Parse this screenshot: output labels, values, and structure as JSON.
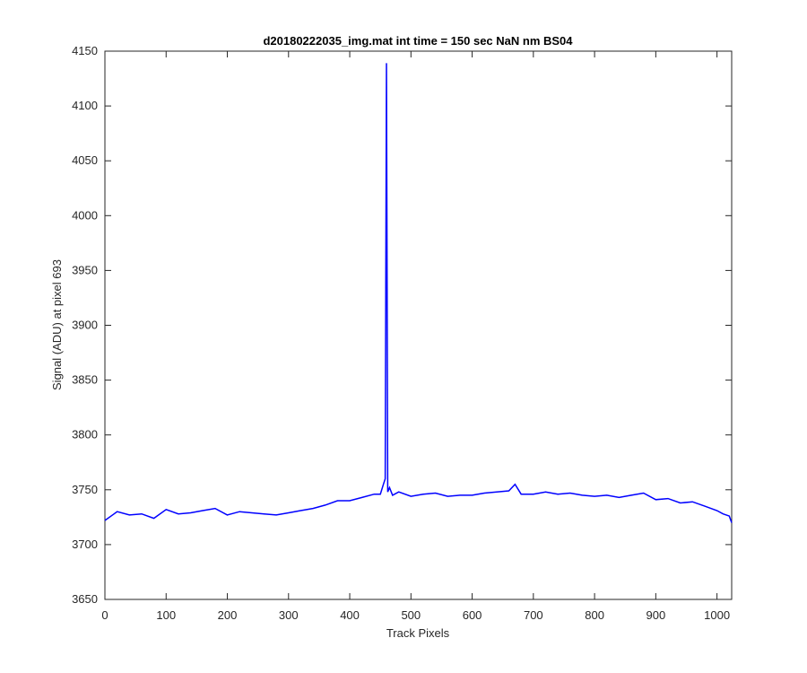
{
  "chart_data": {
    "type": "line",
    "title": "d20180222035_img.mat int time = 150 sec  NaN nm BS04",
    "xlabel": "Track Pixels",
    "ylabel": "Signal (ADU) at pixel 693",
    "xlim": [
      0,
      1024
    ],
    "ylim": [
      3650,
      4150
    ],
    "xticks": [
      0,
      100,
      200,
      300,
      400,
      500,
      600,
      700,
      800,
      900,
      1000
    ],
    "yticks": [
      3650,
      3700,
      3750,
      3800,
      3850,
      3900,
      3950,
      4000,
      4050,
      4100,
      4150
    ],
    "grid": false,
    "line_color": "#0000ff",
    "series": [
      {
        "x": [
          0,
          20,
          40,
          60,
          80,
          100,
          120,
          140,
          160,
          180,
          200,
          220,
          240,
          260,
          280,
          300,
          320,
          340,
          360,
          380,
          400,
          420,
          440,
          450,
          455,
          458,
          460,
          462,
          465,
          470,
          480,
          500,
          520,
          540,
          560,
          580,
          600,
          620,
          640,
          660,
          670,
          680,
          700,
          720,
          740,
          760,
          780,
          800,
          820,
          840,
          860,
          880,
          900,
          920,
          940,
          960,
          980,
          1000,
          1010,
          1020,
          1024
        ],
        "y": [
          3722,
          3730,
          3727,
          3728,
          3724,
          3732,
          3728,
          3729,
          3731,
          3733,
          3727,
          3730,
          3729,
          3728,
          3727,
          3729,
          3731,
          3733,
          3736,
          3740,
          3740,
          3743,
          3746,
          3746,
          3755,
          3760,
          4139,
          3748,
          3752,
          3745,
          3748,
          3744,
          3746,
          3747,
          3744,
          3745,
          3745,
          3747,
          3748,
          3749,
          3755,
          3746,
          3746,
          3748,
          3746,
          3747,
          3745,
          3744,
          3745,
          3743,
          3745,
          3747,
          3741,
          3742,
          3738,
          3739,
          3735,
          3731,
          3728,
          3726,
          3720
        ]
      }
    ]
  }
}
